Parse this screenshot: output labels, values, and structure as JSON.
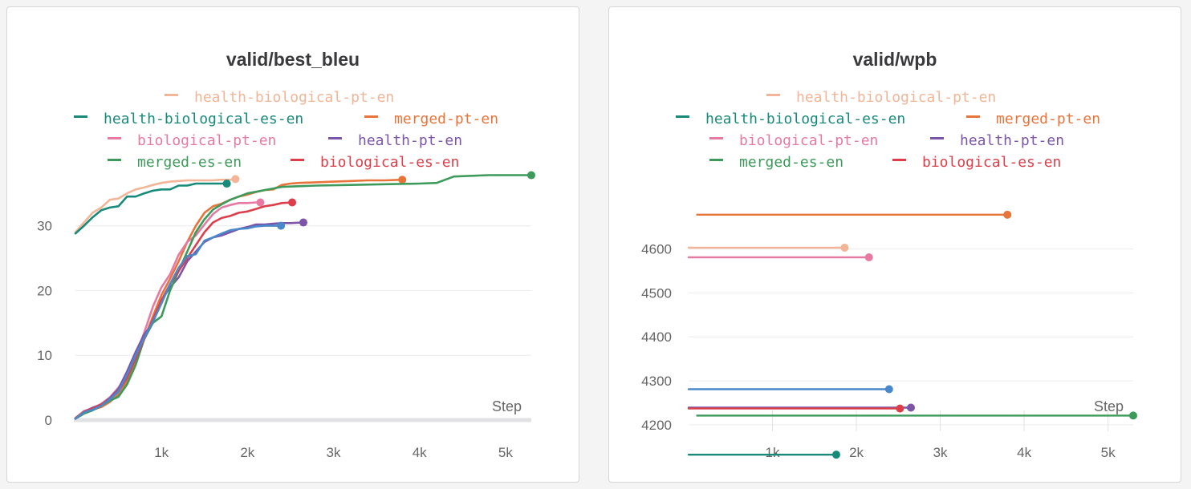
{
  "palette": {
    "health-biological-pt-en": "#f2b597",
    "health-biological-es-en": "#178a7a",
    "merged-pt-en": "#e8743a",
    "biological-pt-en": "#e67aa3",
    "health-pt-en": "#7c55a8",
    "merged-es-en": "#3c9a5a",
    "biological-es-en": "#dc3f4a",
    "extra-blue": "#4a88cc"
  },
  "chart_data": [
    {
      "type": "line",
      "title": "valid/best_bleu",
      "xlabel": "Step",
      "ylabel": "",
      "xlim": [
        0,
        5300
      ],
      "ylim": [
        0,
        37
      ],
      "xticks": [
        {
          "value": 1000,
          "label": "1k"
        },
        {
          "value": 2000,
          "label": "2k"
        },
        {
          "value": 3000,
          "label": "3k"
        },
        {
          "value": 4000,
          "label": "4k"
        },
        {
          "value": 5000,
          "label": "5k"
        }
      ],
      "yticks": [
        {
          "value": 0,
          "label": "0"
        },
        {
          "value": 10,
          "label": "10"
        },
        {
          "value": 20,
          "label": "20"
        },
        {
          "value": 30,
          "label": "30"
        }
      ],
      "legend": [
        {
          "name": "health-biological-pt-en",
          "color": "#f2b597"
        },
        {
          "name": "health-biological-es-en",
          "color": "#178a7a"
        },
        {
          "name": "merged-pt-en",
          "color": "#e8743a"
        },
        {
          "name": "biological-pt-en",
          "color": "#e67aa3"
        },
        {
          "name": "health-pt-en",
          "color": "#7c55a8"
        },
        {
          "name": "merged-es-en",
          "color": "#3c9a5a"
        },
        {
          "name": "biological-es-en",
          "color": "#dc3f4a"
        }
      ],
      "series": [
        {
          "name": "health-biological-pt-en",
          "color": "#f2b597",
          "x": [
            0,
            100,
            200,
            300,
            400,
            500,
            600,
            700,
            800,
            900,
            1000,
            1100,
            1200,
            1300,
            1400,
            1500,
            1600,
            1700,
            1800,
            1860
          ],
          "y": [
            29,
            30.5,
            32,
            32.8,
            34,
            34.2,
            35,
            35.6,
            35.9,
            36.3,
            36.6,
            36.8,
            36.9,
            37,
            37,
            37,
            37,
            37.1,
            37.1,
            37.2
          ]
        },
        {
          "name": "health-biological-es-en",
          "color": "#178a7a",
          "x": [
            0,
            100,
            200,
            300,
            400,
            500,
            600,
            700,
            800,
            900,
            1000,
            1100,
            1200,
            1300,
            1400,
            1500,
            1600,
            1700,
            1760
          ],
          "y": [
            28.8,
            30,
            31.3,
            32.4,
            32.8,
            33,
            34.5,
            34.5,
            35,
            35.4,
            35.6,
            35.6,
            36.2,
            36.2,
            36.5,
            36.5,
            36.5,
            36.5,
            36.5
          ]
        },
        {
          "name": "merged-pt-en",
          "color": "#e8743a",
          "x": [
            0,
            100,
            200,
            300,
            400,
            500,
            600,
            700,
            800,
            900,
            1000,
            1100,
            1200,
            1300,
            1400,
            1500,
            1600,
            1700,
            1800,
            1900,
            2000,
            2100,
            2200,
            2300,
            2400,
            2500,
            2600,
            2800,
            3000,
            3200,
            3400,
            3600,
            3800
          ],
          "y": [
            0.3,
            1.2,
            1.6,
            2,
            2.8,
            4,
            6,
            9,
            12.5,
            16,
            19.3,
            21.8,
            24.5,
            27.5,
            30,
            32,
            33,
            33.4,
            34,
            34.5,
            34.8,
            35.2,
            35.5,
            35.6,
            36.3,
            36.5,
            36.6,
            36.7,
            36.8,
            36.9,
            37,
            37,
            37.1
          ]
        },
        {
          "name": "biological-pt-en",
          "color": "#e67aa3",
          "x": [
            0,
            100,
            200,
            300,
            400,
            500,
            600,
            700,
            800,
            900,
            1000,
            1100,
            1200,
            1300,
            1400,
            1500,
            1600,
            1700,
            1800,
            1900,
            2000,
            2100,
            2150
          ],
          "y": [
            0.3,
            1.4,
            1.8,
            2.5,
            3.5,
            5,
            7,
            10,
            13.5,
            17.5,
            20.5,
            22.5,
            25.5,
            27.5,
            28.5,
            30.2,
            31.8,
            32.8,
            33.2,
            33.5,
            33.5,
            33.6,
            33.6
          ]
        },
        {
          "name": "health-pt-en",
          "color": "#7c55a8",
          "x": [
            0,
            100,
            200,
            300,
            400,
            500,
            600,
            700,
            800,
            900,
            1000,
            1100,
            1200,
            1300,
            1400,
            1500,
            1600,
            1700,
            1800,
            1900,
            2000,
            2100,
            2200,
            2300,
            2400,
            2500,
            2650
          ],
          "y": [
            0.3,
            1.3,
            1.9,
            2.4,
            3.4,
            4.8,
            7.5,
            10.5,
            13.2,
            15,
            18.5,
            20.5,
            22,
            24.5,
            26,
            27.5,
            28.2,
            28.5,
            29,
            29.5,
            29.8,
            30.2,
            30.2,
            30.3,
            30.4,
            30.4,
            30.5
          ]
        },
        {
          "name": "merged-es-en",
          "color": "#3c9a5a",
          "x": [
            0,
            100,
            200,
            300,
            400,
            500,
            600,
            700,
            800,
            900,
            1000,
            1100,
            1200,
            1300,
            1400,
            1500,
            1600,
            1700,
            1800,
            1900,
            2000,
            2200,
            2400,
            2800,
            3200,
            3600,
            4000,
            4200,
            4400,
            4800,
            5300
          ],
          "y": [
            0.2,
            1,
            1.5,
            2.2,
            3,
            3.6,
            5.5,
            8.5,
            12.5,
            15,
            16,
            20,
            23,
            26,
            29,
            31,
            32.5,
            33.3,
            34,
            34.5,
            35,
            35.5,
            36,
            36.2,
            36.3,
            36.4,
            36.5,
            36.6,
            37.6,
            37.8,
            37.8
          ]
        },
        {
          "name": "biological-es-en",
          "color": "#dc3f4a",
          "x": [
            0,
            100,
            200,
            300,
            400,
            500,
            600,
            700,
            800,
            900,
            1000,
            1100,
            1200,
            1300,
            1400,
            1500,
            1600,
            1700,
            1800,
            1900,
            2000,
            2100,
            2200,
            2300,
            2400,
            2520
          ],
          "y": [
            0.3,
            1.3,
            1.8,
            2.4,
            3.2,
            4.5,
            6.5,
            9.5,
            12.5,
            15.5,
            18.5,
            21,
            23,
            25,
            27,
            29,
            30.5,
            31.2,
            31.5,
            32,
            32.2,
            32.6,
            33,
            33.2,
            33.5,
            33.6
          ]
        },
        {
          "name": "",
          "color": "#4a88cc",
          "x": [
            0,
            100,
            200,
            300,
            400,
            500,
            600,
            700,
            800,
            900,
            1000,
            1100,
            1200,
            1300,
            1400,
            1500,
            1600,
            1700,
            1800,
            1900,
            2000,
            2100,
            2200,
            2300,
            2390
          ],
          "y": [
            0.2,
            1.2,
            1.6,
            2.2,
            3.2,
            4.4,
            7,
            10,
            12.7,
            15.2,
            18,
            21,
            23.5,
            25.3,
            25.6,
            27.7,
            28.2,
            28.8,
            29.3,
            29.5,
            29.6,
            29.9,
            30,
            30,
            30
          ]
        }
      ]
    },
    {
      "type": "line",
      "title": "valid/wpb",
      "xlabel": "Step",
      "ylabel": "",
      "xlim": [
        0,
        5300
      ],
      "ylim": [
        4125,
        4685
      ],
      "xticks": [
        {
          "value": 1000,
          "label": "1k"
        },
        {
          "value": 2000,
          "label": "2k"
        },
        {
          "value": 3000,
          "label": "3k"
        },
        {
          "value": 4000,
          "label": "4k"
        },
        {
          "value": 5000,
          "label": "5k"
        }
      ],
      "yticks": [
        {
          "value": 4200,
          "label": "4200"
        },
        {
          "value": 4300,
          "label": "4300"
        },
        {
          "value": 4400,
          "label": "4400"
        },
        {
          "value": 4500,
          "label": "4500"
        },
        {
          "value": 4600,
          "label": "4600"
        }
      ],
      "legend": [
        {
          "name": "health-biological-pt-en",
          "color": "#f2b597"
        },
        {
          "name": "health-biological-es-en",
          "color": "#178a7a"
        },
        {
          "name": "merged-pt-en",
          "color": "#e8743a"
        },
        {
          "name": "biological-pt-en",
          "color": "#e67aa3"
        },
        {
          "name": "health-pt-en",
          "color": "#7c55a8"
        },
        {
          "name": "merged-es-en",
          "color": "#3c9a5a"
        },
        {
          "name": "biological-es-en",
          "color": "#dc3f4a"
        }
      ],
      "series": [
        {
          "name": "merged-pt-en",
          "color": "#e8743a",
          "x": [
            100,
            3800
          ],
          "y": [
            4678,
            4678
          ]
        },
        {
          "name": "health-biological-pt-en",
          "color": "#f2b597",
          "x": [
            0,
            1860
          ],
          "y": [
            4603,
            4603
          ]
        },
        {
          "name": "biological-pt-en",
          "color": "#e67aa3",
          "x": [
            0,
            2150
          ],
          "y": [
            4581,
            4581
          ]
        },
        {
          "name": "",
          "color": "#4a88cc",
          "x": [
            0,
            2390
          ],
          "y": [
            4281,
            4281
          ]
        },
        {
          "name": "health-pt-en",
          "color": "#7c55a8",
          "x": [
            0,
            2650
          ],
          "y": [
            4239,
            4239
          ]
        },
        {
          "name": "biological-es-en",
          "color": "#dc3f4a",
          "x": [
            0,
            2520
          ],
          "y": [
            4237,
            4237
          ]
        },
        {
          "name": "merged-es-en",
          "color": "#3c9a5a",
          "x": [
            100,
            5300
          ],
          "y": [
            4221,
            4221
          ]
        },
        {
          "name": "health-biological-es-en",
          "color": "#178a7a",
          "x": [
            0,
            1760
          ],
          "y": [
            4132,
            4132
          ]
        }
      ]
    }
  ]
}
